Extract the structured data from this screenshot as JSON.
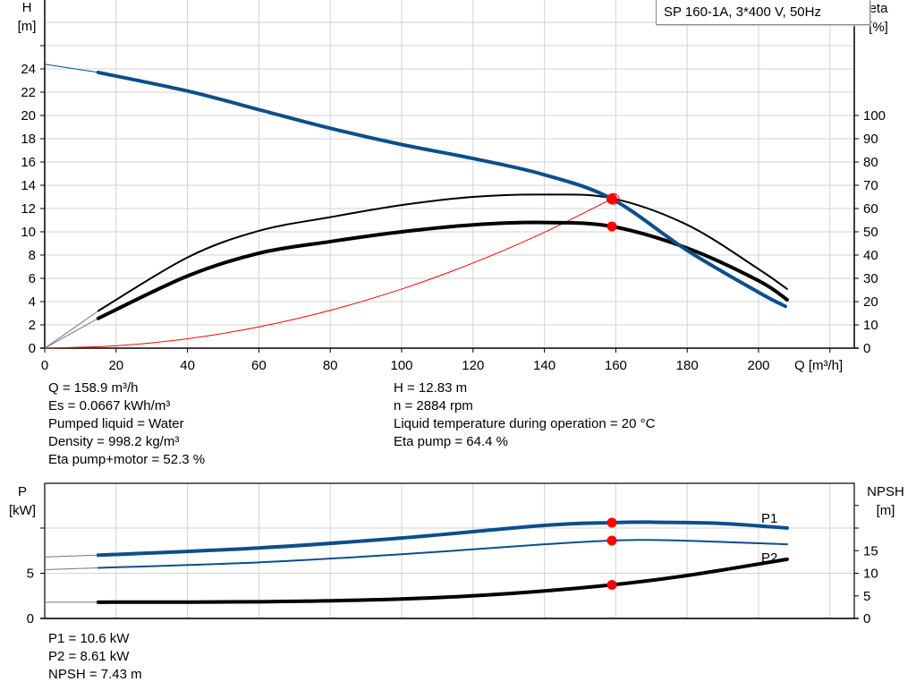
{
  "title": "SP 160-1A, 3*400 V, 50Hz",
  "colors": {
    "blue": "#0b4f8a",
    "black": "#000000",
    "red": "#ff0000",
    "grid": "#d3d3d3"
  },
  "chart_data": [
    {
      "type": "line",
      "xlabel": "Q [m³/h]",
      "xlim": [
        0,
        220
      ],
      "x_ticks": [
        "0",
        "20",
        "40",
        "60",
        "80",
        "100",
        "120",
        "140",
        "160",
        "180",
        "200"
      ],
      "y_left": {
        "label": "H",
        "unit": "[m]",
        "ylim": [
          0,
          28
        ],
        "ticks": [
          "0",
          "2",
          "4",
          "6",
          "8",
          "10",
          "12",
          "14",
          "16",
          "18",
          "20",
          "22",
          "24"
        ]
      },
      "y_right": {
        "label": "eta",
        "unit": "[%]",
        "ylim": [
          0,
          150
        ],
        "ticks": [
          "0",
          "10",
          "20",
          "30",
          "40",
          "50",
          "60",
          "70",
          "80",
          "90",
          "100"
        ]
      },
      "grid": true,
      "series": [
        {
          "id": "H",
          "axis": "left",
          "color": "#0b4f8a",
          "points": [
            [
              15,
              23.7
            ],
            [
              40,
              22.1
            ],
            [
              60,
              20.5
            ],
            [
              80,
              18.9
            ],
            [
              100,
              17.5
            ],
            [
              120,
              16.3
            ],
            [
              140,
              14.9
            ],
            [
              158.9,
              12.83
            ],
            [
              180,
              8.4
            ],
            [
              200,
              4.8
            ],
            [
              207.5,
              3.6
            ]
          ],
          "extrapolation": [
            [
              0,
              24.4
            ],
            [
              15,
              23.7
            ]
          ]
        },
        {
          "id": "eta-pump",
          "axis": "right",
          "color": "#000000",
          "points": [
            [
              15,
              16
            ],
            [
              40,
              39
            ],
            [
              60,
              50.4
            ],
            [
              80,
              56.3
            ],
            [
              100,
              61.5
            ],
            [
              120,
              65
            ],
            [
              140,
              66
            ],
            [
              158.9,
              64.4
            ],
            [
              180,
              53
            ],
            [
              200,
              34
            ],
            [
              208,
              25.4
            ]
          ],
          "extrapolation": [
            [
              0,
              0
            ],
            [
              15,
              16
            ]
          ]
        },
        {
          "id": "eta-pump-motor",
          "axis": "right",
          "color": "#000000",
          "points": [
            [
              15,
              12.8
            ],
            [
              40,
              31
            ],
            [
              60,
              40.8
            ],
            [
              80,
              45.8
            ],
            [
              100,
              50
            ],
            [
              120,
              53
            ],
            [
              140,
              54
            ],
            [
              158.9,
              52.3
            ],
            [
              180,
              43
            ],
            [
              200,
              29
            ],
            [
              208,
              20.8
            ]
          ],
          "extrapolation": [
            [
              0,
              0
            ],
            [
              15,
              12.8
            ]
          ]
        },
        {
          "id": "system-curve",
          "axis": "left",
          "color": "#ff0000",
          "points": [
            [
              0,
              0
            ],
            [
              20,
              0.2
            ],
            [
              40,
              0.81
            ],
            [
              60,
              1.83
            ],
            [
              80,
              3.25
            ],
            [
              100,
              5.08
            ],
            [
              120,
              7.32
            ],
            [
              140,
              9.96
            ],
            [
              158.9,
              12.83
            ]
          ]
        }
      ],
      "duty_point": {
        "Q": 158.9,
        "H": 12.83,
        "eta_pump": 64.4,
        "eta_pump_motor": 52.3
      }
    },
    {
      "type": "line",
      "xlim": [
        0,
        220
      ],
      "y_left": {
        "label": "P",
        "unit": "[kW]",
        "ylim": [
          0,
          15
        ],
        "ticks": [
          "0",
          "5"
        ]
      },
      "y_right": {
        "label": "NPSH",
        "unit": "[m]",
        "ylim": [
          0,
          30
        ],
        "ticks": [
          "0",
          "5",
          "10",
          "15"
        ]
      },
      "grid": true,
      "series": [
        {
          "id": "P1",
          "name": "P1",
          "axis": "left",
          "color": "#0b4f8a",
          "points": [
            [
              15,
              7.0
            ],
            [
              60,
              7.8
            ],
            [
              100,
              8.9
            ],
            [
              140,
              10.3
            ],
            [
              158.9,
              10.6
            ],
            [
              170,
              10.65
            ],
            [
              190,
              10.5
            ],
            [
              208,
              10.0
            ]
          ],
          "extrapolation": [
            [
              0,
              6.8
            ],
            [
              15,
              7.0
            ]
          ]
        },
        {
          "id": "P2",
          "name": "P2",
          "axis": "left",
          "color": "#0b4f8a",
          "points": [
            [
              15,
              5.6
            ],
            [
              60,
              6.2
            ],
            [
              100,
              7.1
            ],
            [
              140,
              8.2
            ],
            [
              158.9,
              8.61
            ],
            [
              175,
              8.65
            ],
            [
              208,
              8.2
            ]
          ],
          "extrapolation": [
            [
              0,
              5.4
            ],
            [
              15,
              5.6
            ]
          ]
        },
        {
          "id": "NPSH",
          "axis": "right",
          "color": "#000000",
          "points": [
            [
              15,
              3.6
            ],
            [
              60,
              3.7
            ],
            [
              100,
              4.3
            ],
            [
              130,
              5.5
            ],
            [
              158.9,
              7.43
            ],
            [
              180,
              9.5
            ],
            [
              208,
              13.1
            ]
          ],
          "extrapolation": [
            [
              0,
              3.6
            ],
            [
              15,
              3.6
            ]
          ]
        }
      ],
      "duty_point": {
        "Q": 158.9,
        "P1": 10.6,
        "P2": 8.61,
        "NPSH": 7.43
      }
    }
  ],
  "info_left": [
    "Q = 158.9 m³/h",
    "Es = 0.0667 kWh/m³",
    "Pumped liquid = Water",
    "Density = 998.2 kg/m³",
    "Eta pump+motor = 52.3 %"
  ],
  "info_right": [
    "H = 12.83 m",
    "n = 2884 rpm",
    "Liquid temperature during operation = 20 °C",
    "Eta pump = 64.4 %"
  ],
  "info_power": [
    "P1 = 10.6 kW",
    "P2 = 8.61 kW",
    "NPSH = 7.43 m"
  ]
}
